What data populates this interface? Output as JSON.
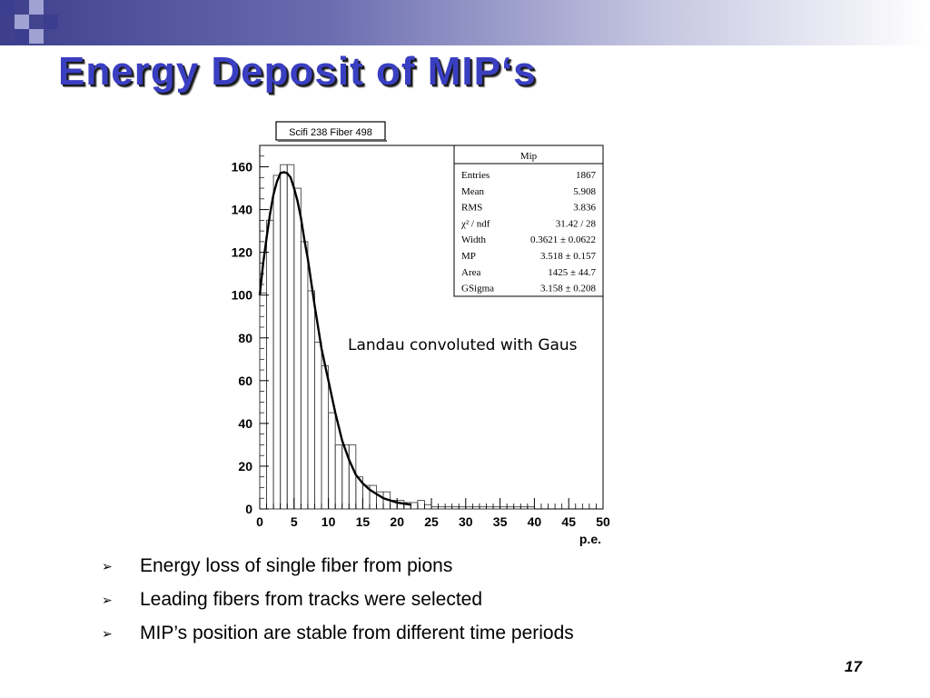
{
  "slide": {
    "title": "Energy Deposit of MIP‘s",
    "page_number": "17",
    "bullet_icon": "arrow-bullet-icon",
    "bullets": [
      "Energy loss of single fiber from pions",
      "Leading fibers from tracks were selected",
      "MIP’s position are stable from different time periods"
    ],
    "colors": {
      "title": "#3a3fc2",
      "banner_dark": "#3d3f8c",
      "square_dark": "#3b3d8e",
      "square_light": "#9fa2d2"
    }
  },
  "chart_data": {
    "type": "histogram",
    "title": "Scifi 238 Fiber 498",
    "xlabel": "p.e.",
    "ylabel": "",
    "xlim": [
      0,
      50
    ],
    "ylim": [
      0,
      170
    ],
    "x_ticks": [
      0,
      5,
      10,
      15,
      20,
      25,
      30,
      35,
      40,
      45,
      50
    ],
    "y_ticks": [
      0,
      20,
      40,
      60,
      80,
      100,
      120,
      140,
      160
    ],
    "grid": false,
    "annotation": "Landau convoluted with Gaus",
    "bin_width": 1,
    "histogram": {
      "name": "Mip",
      "bin_edges_start": 0,
      "values": [
        101,
        135,
        156,
        161,
        161,
        150,
        125,
        102,
        78,
        67,
        45,
        30,
        30,
        30,
        15,
        11,
        11,
        8,
        8,
        4,
        4,
        3,
        3,
        4,
        2,
        1,
        1,
        1,
        1,
        1,
        1,
        1,
        1,
        1,
        1,
        1,
        1,
        1,
        1,
        1,
        0,
        0,
        0,
        0,
        0,
        0,
        0,
        0,
        0,
        0
      ]
    },
    "fit_curve": {
      "name": "Landau convoluted with Gaus",
      "x": [
        0,
        0.5,
        1,
        1.5,
        2,
        2.5,
        3,
        3.5,
        4,
        4.5,
        5,
        5.5,
        6,
        6.5,
        7,
        7.5,
        8,
        9,
        10,
        11,
        12,
        13,
        14,
        15,
        16,
        17,
        18,
        19,
        20,
        22
      ],
      "y": [
        100,
        115,
        127,
        138,
        147,
        153,
        157,
        157.5,
        157,
        155,
        150,
        144,
        136,
        126,
        117,
        106,
        95,
        75,
        60,
        45,
        32,
        23,
        16,
        12,
        9,
        7,
        5,
        4,
        3,
        2
      ]
    },
    "stats_box": {
      "title": "Mip",
      "rows": [
        {
          "label": "Entries",
          "value": "1867"
        },
        {
          "label": "Mean",
          "value": "5.908"
        },
        {
          "label": "RMS",
          "value": "3.836"
        },
        {
          "label": "χ² / ndf",
          "value": "31.42 / 28"
        },
        {
          "label": "Width",
          "value": "0.3621 ± 0.0622"
        },
        {
          "label": "MP",
          "value": "3.518 ± 0.157"
        },
        {
          "label": "Area",
          "value": "1425 ± 44.7"
        },
        {
          "label": "GSigma",
          "value": "3.158 ± 0.208"
        }
      ]
    }
  }
}
